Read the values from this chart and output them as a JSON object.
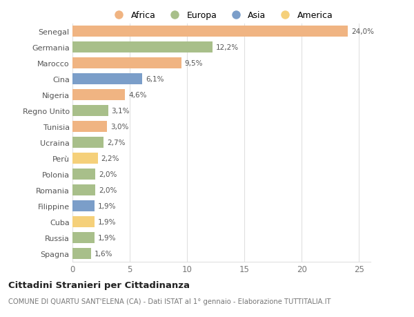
{
  "countries": [
    "Senegal",
    "Germania",
    "Marocco",
    "Cina",
    "Nigeria",
    "Regno Unito",
    "Tunisia",
    "Ucraina",
    "Perù",
    "Polonia",
    "Romania",
    "Filippine",
    "Cuba",
    "Russia",
    "Spagna"
  ],
  "values": [
    24.0,
    12.2,
    9.5,
    6.1,
    4.6,
    3.1,
    3.0,
    2.7,
    2.2,
    2.0,
    2.0,
    1.9,
    1.9,
    1.9,
    1.6
  ],
  "labels": [
    "24,0%",
    "12,2%",
    "9,5%",
    "6,1%",
    "4,6%",
    "3,1%",
    "3,0%",
    "2,7%",
    "2,2%",
    "2,0%",
    "2,0%",
    "1,9%",
    "1,9%",
    "1,9%",
    "1,6%"
  ],
  "colors": [
    "#F0B482",
    "#A8BF8A",
    "#F0B482",
    "#7B9EC9",
    "#F0B482",
    "#A8BF8A",
    "#F0B482",
    "#A8BF8A",
    "#F5D07A",
    "#A8BF8A",
    "#A8BF8A",
    "#7B9EC9",
    "#F5D07A",
    "#A8BF8A",
    "#A8BF8A"
  ],
  "legend": {
    "Africa": "#F0B482",
    "Europa": "#A8BF8A",
    "Asia": "#7B9EC9",
    "America": "#F5D07A"
  },
  "xlim": [
    0,
    26
  ],
  "xticks": [
    0,
    5,
    10,
    15,
    20,
    25
  ],
  "title": "Cittadini Stranieri per Cittadinanza",
  "subtitle": "COMUNE DI QUARTU SANT'ELENA (CA) - Dati ISTAT al 1° gennaio - Elaborazione TUTTITALIA.IT",
  "bg_color": "#ffffff",
  "grid_color": "#e0e0e0",
  "bar_height": 0.72
}
